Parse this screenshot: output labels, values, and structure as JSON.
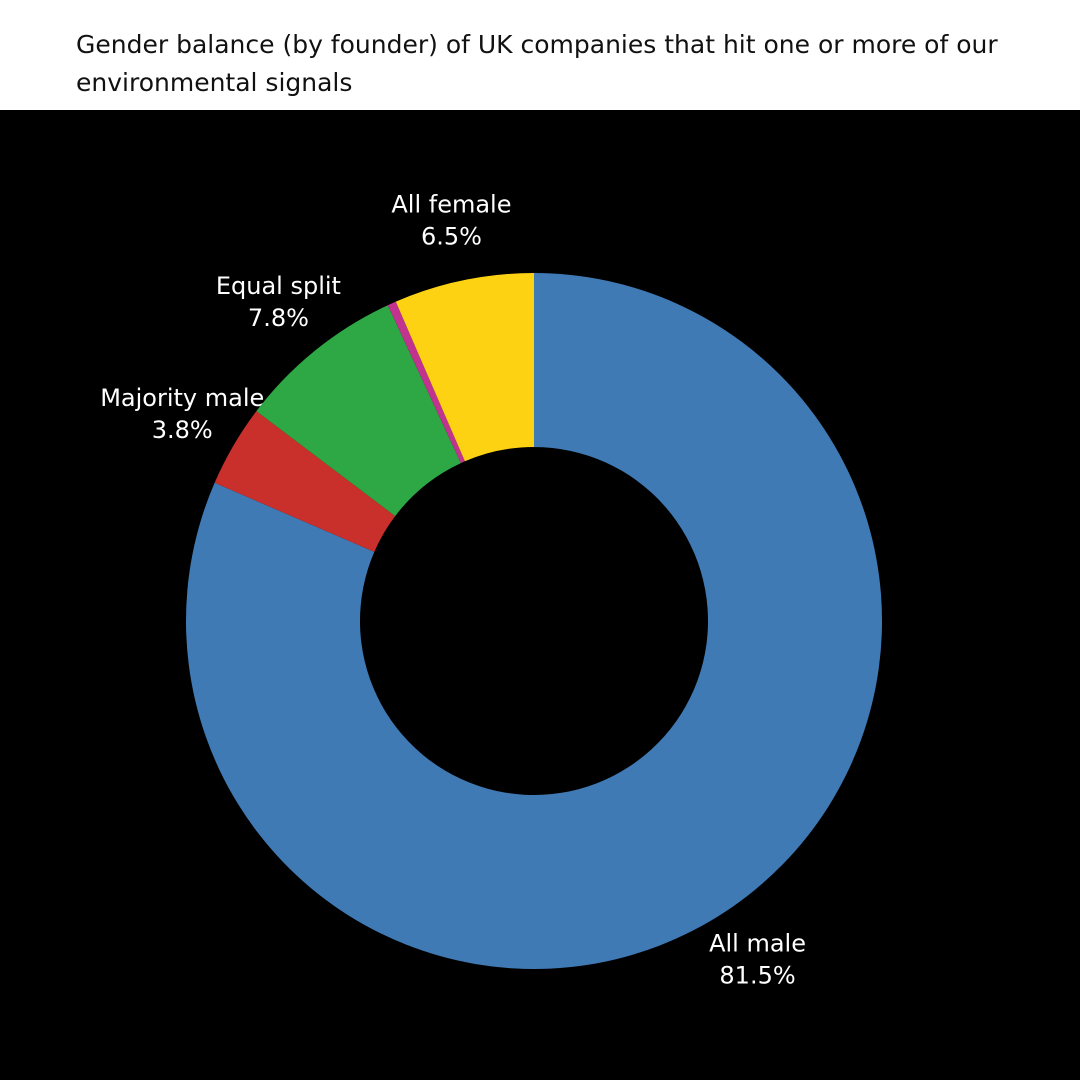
{
  "chart_data": {
    "type": "donut",
    "title": "Gender balance (by founder) of UK companies that hit one or more of our environmental signals",
    "categories": [
      "All male",
      "Majority male",
      "Equal split",
      null,
      "All female"
    ],
    "values": [
      81.5,
      3.8,
      7.8,
      0.4,
      6.5
    ],
    "value_labels": [
      "81.5%",
      "3.8%",
      "7.8%",
      null,
      "6.5%"
    ],
    "colors": [
      "#3f7ab5",
      "#c9302c",
      "#2ea844",
      "#c1338f",
      "#fdd213"
    ]
  }
}
